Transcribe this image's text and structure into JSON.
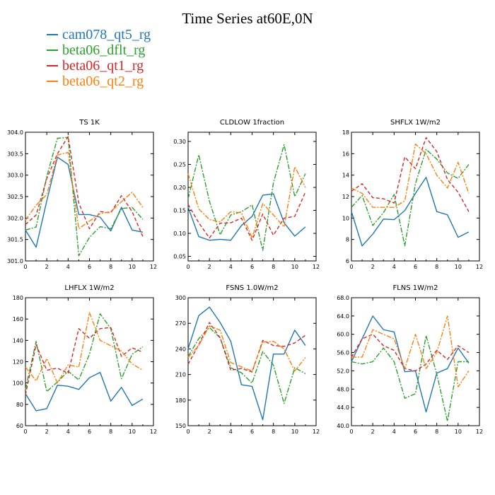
{
  "figure": {
    "title": "Time Series at60E,0N"
  },
  "legend": [
    {
      "name": "cam078_qt5_rg",
      "color": "#1f77b4",
      "dash": "solid"
    },
    {
      "name": "beta06_dflt_rg",
      "color": "#2ca02c",
      "dash": "dashdot"
    },
    {
      "name": "beta06_qt1_rg",
      "color": "#d62728",
      "dash": "dash"
    },
    {
      "name": "beta06_qt2_rg",
      "color": "#ff7f0e",
      "dash": "dashdot"
    }
  ],
  "chart_data": [
    {
      "type": "line",
      "title": "TS   1K",
      "xlim": [
        0,
        12
      ],
      "xticks": [
        0,
        2,
        4,
        6,
        8,
        10,
        12
      ],
      "ylim": [
        301.0,
        304.0
      ],
      "yticks": [
        301.0,
        301.5,
        302.0,
        302.5,
        303.0,
        303.5,
        304.0
      ],
      "ydecimals": 1,
      "x": [
        0,
        1,
        2,
        3,
        4,
        5,
        6,
        7,
        8,
        9,
        10,
        11
      ],
      "series": [
        {
          "name": "cam078_qt5_rg",
          "values": [
            301.72,
            301.32,
            302.4,
            303.42,
            303.25,
            302.08,
            302.08,
            302.02,
            301.7,
            302.25,
            301.72,
            301.67
          ]
        },
        {
          "name": "beta06_dflt_rg",
          "values": [
            301.72,
            301.79,
            302.97,
            303.86,
            303.88,
            301.12,
            301.55,
            301.8,
            301.75,
            302.22,
            302.25,
            301.97
          ]
        },
        {
          "name": "beta06_qt1_rg",
          "values": [
            301.85,
            302.07,
            302.92,
            303.5,
            303.9,
            302.35,
            301.75,
            302.15,
            302.12,
            302.52,
            302.15,
            301.57
          ]
        },
        {
          "name": "beta06_qt2_rg",
          "values": [
            301.95,
            302.3,
            302.55,
            303.47,
            303.53,
            301.75,
            301.93,
            302.1,
            302.15,
            302.38,
            302.6,
            302.25
          ]
        }
      ]
    },
    {
      "type": "line",
      "title": "CLDLOW   1fraction",
      "xlim": [
        0,
        12
      ],
      "xticks": [
        0,
        2,
        4,
        6,
        8,
        10,
        12
      ],
      "ylim": [
        0.04,
        0.32
      ],
      "yticks": [
        0.05,
        0.1,
        0.15,
        0.2,
        0.25,
        0.3
      ],
      "ydecimals": 2,
      "x": [
        0,
        1,
        2,
        3,
        4,
        5,
        6,
        7,
        8,
        9,
        10,
        11
      ],
      "series": [
        {
          "name": "cam078_qt5_rg",
          "values": [
            0.157,
            0.093,
            0.085,
            0.087,
            0.085,
            0.117,
            0.137,
            0.183,
            0.186,
            0.123,
            0.094,
            0.114
          ]
        },
        {
          "name": "beta06_dflt_rg",
          "values": [
            0.175,
            0.271,
            0.17,
            0.097,
            0.14,
            0.147,
            0.162,
            0.063,
            0.21,
            0.293,
            0.18,
            0.23
          ]
        },
        {
          "name": "beta06_qt1_rg",
          "values": [
            0.163,
            0.123,
            0.09,
            0.122,
            0.123,
            0.133,
            0.085,
            0.142,
            0.096,
            0.133,
            0.137,
            0.19
          ]
        },
        {
          "name": "beta06_qt2_rg",
          "values": [
            0.23,
            0.153,
            0.13,
            0.125,
            0.147,
            0.145,
            0.09,
            0.165,
            0.14,
            0.114,
            0.245,
            0.2
          ]
        }
      ]
    },
    {
      "type": "line",
      "title": "SHFLX   1W/m2",
      "xlim": [
        0,
        12
      ],
      "xticks": [
        0,
        2,
        4,
        6,
        8,
        10,
        12
      ],
      "ylim": [
        6,
        18
      ],
      "yticks": [
        6,
        8,
        10,
        12,
        14,
        16,
        18
      ],
      "ydecimals": 0,
      "x": [
        0,
        1,
        2,
        3,
        4,
        5,
        6,
        7,
        8,
        9,
        10,
        11
      ],
      "series": [
        {
          "name": "cam078_qt5_rg",
          "values": [
            10.6,
            7.4,
            8.5,
            9.9,
            9.85,
            10.7,
            12.3,
            13.8,
            10.6,
            10.3,
            8.2,
            8.7
          ]
        },
        {
          "name": "beta06_dflt_rg",
          "values": [
            11.0,
            12.1,
            9.3,
            10.5,
            12.2,
            7.4,
            13.2,
            16.4,
            15.5,
            14.2,
            13.7,
            15.0
          ]
        },
        {
          "name": "beta06_qt1_rg",
          "values": [
            12.5,
            13.2,
            11.9,
            11.8,
            11.4,
            15.7,
            14.6,
            17.5,
            16.2,
            13.6,
            12.4,
            10.6
          ]
        },
        {
          "name": "beta06_qt2_rg",
          "values": [
            12.8,
            12.3,
            11.0,
            11.0,
            11.0,
            11.6,
            16.9,
            16.0,
            14.0,
            12.8,
            15.2,
            12.3
          ]
        }
      ]
    },
    {
      "type": "line",
      "title": "LHFLX   1W/m2",
      "xlim": [
        0,
        12
      ],
      "xticks": [
        0,
        2,
        4,
        6,
        8,
        10,
        12
      ],
      "ylim": [
        60,
        180
      ],
      "yticks": [
        60,
        80,
        100,
        120,
        140,
        160,
        180
      ],
      "ydecimals": 0,
      "x": [
        0,
        1,
        2,
        3,
        4,
        5,
        6,
        7,
        8,
        9,
        10,
        11
      ],
      "series": [
        {
          "name": "cam078_qt5_rg",
          "values": [
            90,
            74,
            76,
            98,
            97,
            94,
            105,
            110,
            83,
            96,
            79,
            85
          ]
        },
        {
          "name": "beta06_dflt_rg",
          "values": [
            94,
            139,
            92,
            101,
            111,
            103,
            127,
            165,
            151,
            104,
            127,
            134
          ]
        },
        {
          "name": "beta06_qt1_rg",
          "values": [
            89,
            136,
            112,
            114,
            109,
            151,
            142,
            151,
            152,
            125,
            133,
            129
          ]
        },
        {
          "name": "beta06_qt2_rg",
          "values": [
            115,
            102,
            123,
            100,
            117,
            115,
            166,
            140,
            135,
            130,
            118,
            112
          ]
        }
      ]
    },
    {
      "type": "line",
      "title": "FSNS   1.0W/m2",
      "xlim": [
        0,
        12
      ],
      "xticks": [
        0,
        2,
        4,
        6,
        8,
        10,
        12
      ],
      "ylim": [
        150,
        300
      ],
      "yticks": [
        150,
        180,
        210,
        240,
        270,
        300
      ],
      "ydecimals": 0,
      "x": [
        0,
        1,
        2,
        3,
        4,
        5,
        6,
        7,
        8,
        9,
        10,
        11
      ],
      "series": [
        {
          "name": "cam078_qt5_rg",
          "values": [
            240,
            279,
            289,
            271,
            249,
            198,
            196,
            157,
            234,
            234,
            262,
            244
          ]
        },
        {
          "name": "beta06_dflt_rg",
          "values": [
            231,
            252,
            265,
            253,
            218,
            212,
            200,
            237,
            221,
            176,
            218,
            211
          ]
        },
        {
          "name": "beta06_qt1_rg",
          "values": [
            222,
            245,
            271,
            253,
            215,
            217,
            213,
            250,
            244,
            243,
            247,
            256
          ]
        },
        {
          "name": "beta06_qt2_rg",
          "values": [
            230,
            244,
            267,
            262,
            224,
            219,
            214,
            248,
            249,
            240,
            214,
            230
          ]
        }
      ]
    },
    {
      "type": "line",
      "title": "FLNS   1W/m2",
      "xlim": [
        0,
        12
      ],
      "xticks": [
        0,
        2,
        4,
        6,
        8,
        10,
        12
      ],
      "ylim": [
        40.0,
        68.0
      ],
      "yticks": [
        40.0,
        44.0,
        48.0,
        52.0,
        56.0,
        60.0,
        64.0,
        68.0
      ],
      "ydecimals": 1,
      "x": [
        0,
        1,
        2,
        3,
        4,
        5,
        6,
        7,
        8,
        9,
        10,
        11
      ],
      "series": [
        {
          "name": "cam078_qt5_rg",
          "values": [
            54,
            59,
            64,
            61,
            60.5,
            51.8,
            52,
            43,
            51.5,
            52.5,
            57,
            53.7
          ]
        },
        {
          "name": "beta06_dflt_rg",
          "values": [
            54,
            53.5,
            54,
            57,
            54,
            46,
            47,
            59.7,
            51.3,
            41,
            54,
            54
          ]
        },
        {
          "name": "beta06_qt1_rg",
          "values": [
            55,
            59,
            60,
            57.5,
            56.5,
            52.5,
            52,
            53.5,
            56.5,
            54.5,
            57.5,
            56
          ]
        },
        {
          "name": "beta06_qt2_rg",
          "values": [
            55,
            55,
            61,
            60,
            59,
            52.5,
            60,
            52.5,
            56,
            64,
            48.5,
            52
          ]
        }
      ]
    }
  ]
}
